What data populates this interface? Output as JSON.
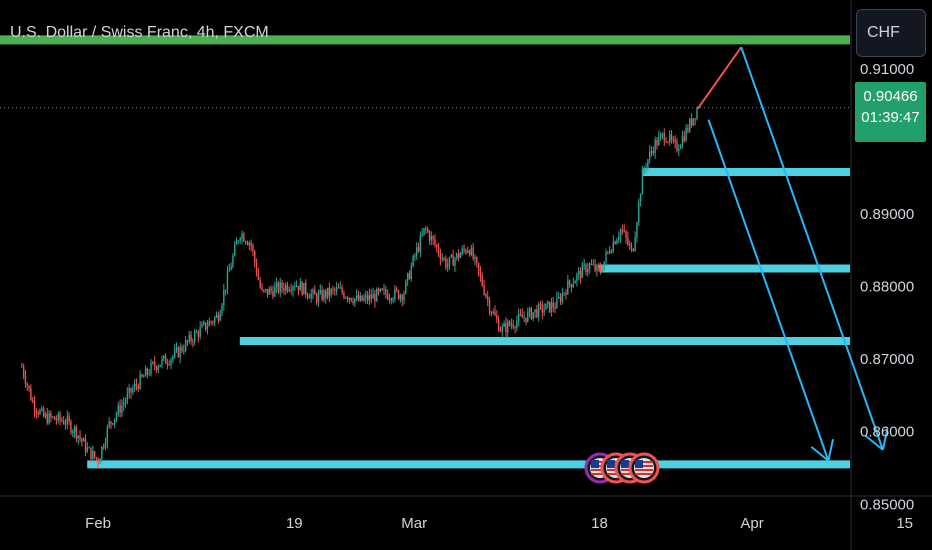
{
  "header": {
    "symbol_title": "U.S. Dollar / Swiss Franc, 4h, FXCM",
    "currency_button": "CHF"
  },
  "price_badge": {
    "last_price": "0.90466",
    "countdown": "01:39:47"
  },
  "colors": {
    "background": "#000000",
    "up_candle": "#26a69a",
    "down_candle": "#ef5350",
    "resistance_line": "#4caf50",
    "support_lines": "#4dd0e1",
    "forecast_arrows": "#29b6f6",
    "forecast_up": "#ef5350",
    "badge": "#22a06b"
  },
  "chart_data": {
    "type": "candlestick",
    "title": "U.S. Dollar / Swiss Franc, 4h, FXCM",
    "interval": "4h",
    "y_axis": {
      "side": "right",
      "ticks": [
        "0.85000",
        "0.86000",
        "0.87000",
        "0.88000",
        "0.89000",
        "0.91000"
      ],
      "ylim": [
        0.8437,
        0.9195
      ]
    },
    "x_axis": {
      "ticks": [
        "Feb",
        "19",
        "Mar",
        "18",
        "Apr",
        "15"
      ]
    },
    "price_path": [
      [
        "2024-01-25",
        0.869
      ],
      [
        "2024-01-26",
        0.864
      ],
      [
        "2024-01-27",
        0.862
      ],
      [
        "2024-01-29",
        0.8615
      ],
      [
        "2024-01-30",
        0.86
      ],
      [
        "2024-01-31",
        0.8575
      ],
      [
        "2024-02-01",
        0.856
      ],
      [
        "2024-02-02",
        0.861
      ],
      [
        "2024-02-04",
        0.8655
      ],
      [
        "2024-02-06",
        0.869
      ],
      [
        "2024-02-08",
        0.8705
      ],
      [
        "2024-02-10",
        0.8735
      ],
      [
        "2024-02-12",
        0.876
      ],
      [
        "2024-02-13",
        0.882
      ],
      [
        "2024-02-14",
        0.8875
      ],
      [
        "2024-02-15",
        0.886
      ],
      [
        "2024-02-16",
        0.879
      ],
      [
        "2024-02-19",
        0.8805
      ],
      [
        "2024-02-21",
        0.8785
      ],
      [
        "2024-02-23",
        0.8795
      ],
      [
        "2024-02-25",
        0.878
      ],
      [
        "2024-02-27",
        0.879
      ],
      [
        "2024-02-29",
        0.879
      ],
      [
        "2024-03-01",
        0.884
      ],
      [
        "2024-03-02",
        0.888
      ],
      [
        "2024-03-04",
        0.883
      ],
      [
        "2024-03-06",
        0.8855
      ],
      [
        "2024-03-07",
        0.8815
      ],
      [
        "2024-03-08",
        0.877
      ],
      [
        "2024-03-09",
        0.874
      ],
      [
        "2024-03-10",
        0.875
      ],
      [
        "2024-03-12",
        0.8765
      ],
      [
        "2024-03-14",
        0.8775
      ],
      [
        "2024-03-15",
        0.88
      ],
      [
        "2024-03-17",
        0.883
      ],
      [
        "2024-03-18",
        0.882
      ],
      [
        "2024-03-19",
        0.8855
      ],
      [
        "2024-03-20",
        0.888
      ],
      [
        "2024-03-21",
        0.8845
      ],
      [
        "2024-03-22",
        0.896
      ],
      [
        "2024-03-23",
        0.8995
      ],
      [
        "2024-03-24",
        0.901
      ],
      [
        "2024-03-25",
        0.899
      ],
      [
        "2024-03-26",
        0.9015
      ],
      [
        "2024-03-27",
        0.9046
      ]
    ],
    "horizontal_levels": [
      {
        "role": "resistance",
        "price": 0.914,
        "from": "2024-01-23",
        "to": "2024-04-24"
      },
      {
        "role": "support",
        "price": 0.8958,
        "from": "2024-03-22",
        "to": "2024-04-24"
      },
      {
        "role": "support",
        "price": 0.8825,
        "from": "2024-03-18",
        "to": "2024-04-24"
      },
      {
        "role": "support",
        "price": 0.8725,
        "from": "2024-02-14",
        "to": "2024-04-24"
      },
      {
        "role": "support",
        "price": 0.8555,
        "from": "2024-01-31",
        "to": "2024-04-24"
      }
    ],
    "forecast_paths": [
      {
        "role": "projection-up",
        "points": [
          [
            "2024-03-27",
            0.9045
          ],
          [
            "2024-03-31",
            0.913
          ]
        ]
      },
      {
        "role": "projection-down",
        "points": [
          [
            "2024-03-28",
            0.903
          ],
          [
            "2024-04-08",
            0.856
          ]
        ],
        "arrowhead": true
      },
      {
        "role": "projection-down",
        "points": [
          [
            "2024-03-31",
            0.913
          ],
          [
            "2024-04-13",
            0.8575
          ]
        ],
        "arrowhead": true
      }
    ],
    "last_price": 0.90466
  }
}
